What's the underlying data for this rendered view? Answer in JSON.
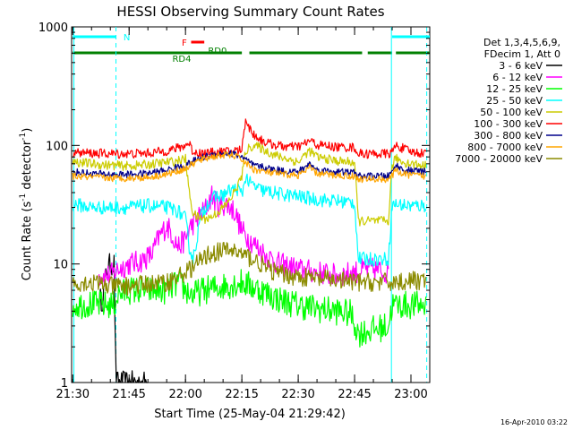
{
  "chart_data": {
    "type": "line",
    "title": "HESSI Observing Summary Count Rates",
    "xlabel": "Start Time (25-May-04 21:29:42)",
    "ylabel_main": "Count Rate (s",
    "ylabel_sup1": "-1",
    "ylabel_mid": " detector",
    "ylabel_sup2": "-1",
    "ylabel_end": ")",
    "yscale": "log",
    "xlim_minutes": [
      -0.3,
      95
    ],
    "ylim": [
      1,
      1000
    ],
    "x_ticks": [
      {
        "minute": 0,
        "label": "21:30"
      },
      {
        "minute": 15,
        "label": "21:45"
      },
      {
        "minute": 30,
        "label": "22:00"
      },
      {
        "minute": 45,
        "label": "22:15"
      },
      {
        "minute": 60,
        "label": "22:30"
      },
      {
        "minute": 75,
        "label": "22:45"
      },
      {
        "minute": 90,
        "label": "23:00"
      }
    ],
    "y_ticks": [
      {
        "value": 1,
        "label": "1"
      },
      {
        "value": 10,
        "label": "10"
      },
      {
        "value": 100,
        "label": "100"
      },
      {
        "value": 1000,
        "label": "1000"
      }
    ],
    "legend_header": [
      "Det 1,3,4,5,6,9,",
      "FDecim 1, Att 0"
    ],
    "legend_placement": "right",
    "timestamp": "16-Apr-2010 03:22",
    "flags": [
      {
        "label": "N",
        "color": "#00ffff",
        "segments": [
          [
            0,
            11.5
          ],
          [
            85,
            95
          ]
        ],
        "label_at": 13.5
      },
      {
        "label": "F",
        "color": "#ff0000",
        "segments": [
          [
            31.5,
            35
          ]
        ],
        "label_at": 29
      },
      {
        "label": "RD0",
        "color": "#008000",
        "segments": [
          [
            47,
            77
          ],
          [
            86,
            95
          ]
        ],
        "label_at": 36
      },
      {
        "label": "RD4",
        "color": "#008000",
        "segments": [
          [
            0,
            45
          ],
          [
            78.5,
            85
          ]
        ],
        "label_at": 26.5
      }
    ],
    "vlines": [
      {
        "minute": 0.3,
        "color": "#00ffff",
        "style": "solid"
      },
      {
        "minute": 11.5,
        "color": "#00ffff",
        "style": "dashed"
      },
      {
        "minute": 84.8,
        "color": "#00ffff",
        "style": "solid"
      },
      {
        "minute": 94.2,
        "color": "#00ffff",
        "style": "dashed"
      }
    ],
    "series": [
      {
        "name": "3 - 6 keV",
        "color": "#000000",
        "noise": 0.1,
        "points": [
          [
            7,
            5
          ],
          [
            8,
            5
          ],
          [
            9,
            9
          ],
          [
            10,
            10
          ],
          [
            11,
            10
          ],
          [
            11.5,
            1
          ],
          [
            20,
            1
          ]
        ]
      },
      {
        "name": "6 - 12 keV",
        "color": "#ff00ff",
        "noise": 0.1,
        "points": [
          [
            7,
            8
          ],
          [
            10,
            8
          ],
          [
            12,
            9
          ],
          [
            15,
            10
          ],
          [
            18,
            10.5
          ],
          [
            21,
            12
          ],
          [
            23,
            17
          ],
          [
            25,
            21
          ],
          [
            26,
            19
          ],
          [
            28,
            14
          ],
          [
            30,
            16
          ],
          [
            31,
            20
          ],
          [
            33,
            24
          ],
          [
            35,
            28
          ],
          [
            36,
            32
          ],
          [
            37,
            38
          ],
          [
            38,
            33
          ],
          [
            39,
            31
          ],
          [
            41,
            32
          ],
          [
            43,
            28
          ],
          [
            45,
            19
          ],
          [
            48,
            15
          ],
          [
            50,
            13
          ],
          [
            52,
            11.5
          ],
          [
            55,
            10
          ],
          [
            60,
            9
          ],
          [
            65,
            8.5
          ],
          [
            70,
            8
          ],
          [
            75,
            8.5
          ],
          [
            78,
            9
          ],
          [
            80,
            9
          ],
          [
            84,
            8.5
          ]
        ]
      },
      {
        "name": "12 - 25 keV",
        "color": "#00ff00",
        "noise": 0.12,
        "points": [
          [
            0,
            4.5
          ],
          [
            5,
            4.6
          ],
          [
            8,
            4.5
          ],
          [
            11,
            4.5
          ],
          [
            12,
            5.5
          ],
          [
            15,
            6
          ],
          [
            20,
            6
          ],
          [
            25,
            6
          ],
          [
            28,
            7
          ],
          [
            30,
            6
          ],
          [
            32,
            5.5
          ],
          [
            35,
            6
          ],
          [
            40,
            6.5
          ],
          [
            45,
            7
          ],
          [
            50,
            6
          ],
          [
            55,
            5
          ],
          [
            60,
            4.5
          ],
          [
            65,
            4.2
          ],
          [
            70,
            4
          ],
          [
            74,
            3.8
          ],
          [
            76,
            2.6
          ],
          [
            82,
            2.9
          ],
          [
            84,
            3
          ],
          [
            85,
            4.5
          ],
          [
            90,
            4.5
          ],
          [
            94,
            4.5
          ]
        ]
      },
      {
        "name": "25 - 50 keV",
        "color": "#00ffff",
        "noise": 0.06,
        "points": [
          [
            0,
            32
          ],
          [
            5,
            30
          ],
          [
            10,
            30
          ],
          [
            15,
            30
          ],
          [
            20,
            31
          ],
          [
            25,
            30
          ],
          [
            28,
            28
          ],
          [
            30,
            24
          ],
          [
            31,
            14
          ],
          [
            32,
            11
          ],
          [
            33,
            16
          ],
          [
            34,
            25
          ],
          [
            36,
            33
          ],
          [
            38,
            37
          ],
          [
            40,
            38
          ],
          [
            42,
            42
          ],
          [
            44,
            43
          ],
          [
            45,
            38
          ],
          [
            46,
            55
          ],
          [
            47,
            48
          ],
          [
            50,
            42
          ],
          [
            55,
            39
          ],
          [
            60,
            37
          ],
          [
            65,
            35
          ],
          [
            70,
            34
          ],
          [
            75,
            33
          ],
          [
            76,
            11
          ],
          [
            84,
            11
          ],
          [
            85,
            32
          ],
          [
            90,
            31
          ],
          [
            94,
            31
          ]
        ]
      },
      {
        "name": "50 - 100 keV",
        "color": "#cccc00",
        "noise": 0.04,
        "points": [
          [
            0,
            73
          ],
          [
            5,
            70
          ],
          [
            10,
            68
          ],
          [
            15,
            67
          ],
          [
            20,
            69
          ],
          [
            25,
            72
          ],
          [
            28,
            74
          ],
          [
            30,
            77
          ],
          [
            31,
            40
          ],
          [
            32,
            27
          ],
          [
            33,
            25
          ],
          [
            35,
            24
          ],
          [
            37,
            25
          ],
          [
            39,
            28
          ],
          [
            41,
            32
          ],
          [
            43,
            40
          ],
          [
            45,
            55
          ],
          [
            46,
            90
          ],
          [
            48,
            100
          ],
          [
            50,
            95
          ],
          [
            52,
            88
          ],
          [
            55,
            80
          ],
          [
            58,
            76
          ],
          [
            60,
            72
          ],
          [
            62,
            85
          ],
          [
            63,
            90
          ],
          [
            65,
            80
          ],
          [
            70,
            74
          ],
          [
            75,
            72
          ],
          [
            76,
            23
          ],
          [
            84,
            23
          ],
          [
            85,
            68
          ],
          [
            86,
            78
          ],
          [
            88,
            72
          ],
          [
            94,
            67
          ]
        ]
      },
      {
        "name": "100 - 300 keV",
        "color": "#ff0000",
        "noise": 0.04,
        "points": [
          [
            0,
            87
          ],
          [
            5,
            86
          ],
          [
            10,
            85
          ],
          [
            15,
            85
          ],
          [
            20,
            86
          ],
          [
            25,
            90
          ],
          [
            28,
            95
          ],
          [
            30,
            100
          ],
          [
            31,
            105
          ],
          [
            32,
            88
          ],
          [
            35,
            86
          ],
          [
            40,
            88
          ],
          [
            45,
            92
          ],
          [
            46,
            170
          ],
          [
            47,
            140
          ],
          [
            48,
            125
          ],
          [
            50,
            112
          ],
          [
            52,
            104
          ],
          [
            55,
            99
          ],
          [
            58,
            97
          ],
          [
            60,
            98
          ],
          [
            62,
            104
          ],
          [
            63,
            110
          ],
          [
            65,
            101
          ],
          [
            70,
            97
          ],
          [
            75,
            96
          ],
          [
            76,
            85
          ],
          [
            84,
            85
          ],
          [
            85,
            88
          ],
          [
            86,
            100
          ],
          [
            88,
            94
          ],
          [
            90,
            88
          ],
          [
            94,
            86
          ]
        ]
      },
      {
        "name": "300 - 800 keV",
        "color": "#00008b",
        "noise": 0.03,
        "points": [
          [
            0,
            60
          ],
          [
            5,
            58
          ],
          [
            10,
            57
          ],
          [
            15,
            57
          ],
          [
            20,
            58
          ],
          [
            25,
            62
          ],
          [
            30,
            68
          ],
          [
            33,
            76
          ],
          [
            36,
            82
          ],
          [
            40,
            86
          ],
          [
            43,
            85
          ],
          [
            45,
            80
          ],
          [
            48,
            68
          ],
          [
            52,
            64
          ],
          [
            56,
            61
          ],
          [
            60,
            60
          ],
          [
            62,
            66
          ],
          [
            63,
            70
          ],
          [
            65,
            62
          ],
          [
            70,
            60
          ],
          [
            75,
            59
          ],
          [
            76,
            55
          ],
          [
            84,
            55
          ],
          [
            85,
            60
          ],
          [
            86,
            68
          ],
          [
            88,
            62
          ],
          [
            94,
            60
          ]
        ]
      },
      {
        "name": "800 - 7000 keV",
        "color": "#ffa500",
        "noise": 0.03,
        "points": [
          [
            0,
            55
          ],
          [
            5,
            54
          ],
          [
            10,
            53
          ],
          [
            15,
            53
          ],
          [
            20,
            54
          ],
          [
            25,
            57
          ],
          [
            30,
            64
          ],
          [
            33,
            73
          ],
          [
            36,
            79
          ],
          [
            40,
            83
          ],
          [
            43,
            82
          ],
          [
            45,
            76
          ],
          [
            48,
            63
          ],
          [
            52,
            59
          ],
          [
            56,
            57
          ],
          [
            60,
            56
          ],
          [
            62,
            61
          ],
          [
            63,
            65
          ],
          [
            65,
            58
          ],
          [
            70,
            56
          ],
          [
            75,
            55
          ],
          [
            76,
            52
          ],
          [
            84,
            52
          ],
          [
            85,
            55
          ],
          [
            86,
            62
          ],
          [
            88,
            57
          ],
          [
            94,
            55
          ]
        ]
      },
      {
        "name": "7000 - 20000 keV",
        "color": "#8b8b00",
        "noise": 0.08,
        "points": [
          [
            0,
            7
          ],
          [
            5,
            7
          ],
          [
            10,
            6.5
          ],
          [
            15,
            6.5
          ],
          [
            20,
            6.8
          ],
          [
            25,
            7
          ],
          [
            28,
            7.8
          ],
          [
            30,
            8.5
          ],
          [
            33,
            10
          ],
          [
            36,
            12
          ],
          [
            40,
            13
          ],
          [
            43,
            13
          ],
          [
            45,
            12
          ],
          [
            48,
            11
          ],
          [
            50,
            10
          ],
          [
            52,
            9
          ],
          [
            55,
            8.3
          ],
          [
            60,
            7.8
          ],
          [
            65,
            7.5
          ],
          [
            70,
            7.3
          ],
          [
            75,
            7
          ],
          [
            80,
            7
          ],
          [
            84,
            7
          ],
          [
            85,
            7
          ],
          [
            90,
            7.2
          ],
          [
            94,
            7.3
          ]
        ]
      }
    ]
  }
}
